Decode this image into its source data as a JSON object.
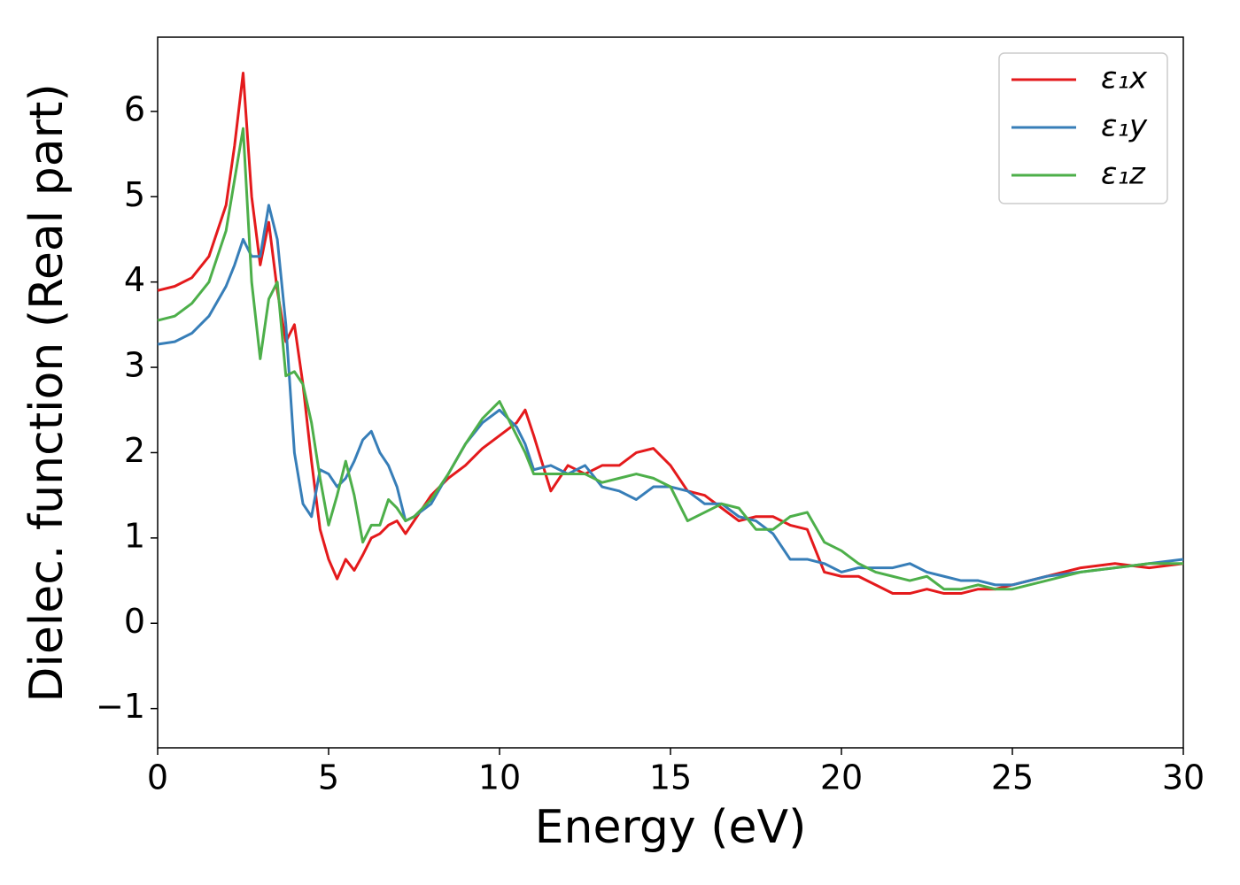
{
  "chart_data": {
    "type": "line",
    "xlabel": "Energy (eV)",
    "ylabel": "Dielec. function (Real part)",
    "x": [
      0,
      0.5,
      1,
      1.5,
      2,
      2.25,
      2.5,
      2.75,
      3,
      3.25,
      3.5,
      3.75,
      4,
      4.25,
      4.5,
      4.75,
      5,
      5.25,
      5.5,
      5.75,
      6,
      6.25,
      6.5,
      6.75,
      7,
      7.25,
      7.5,
      8,
      8.5,
      9,
      9.5,
      10,
      10.5,
      10.75,
      11,
      11.5,
      12,
      12.5,
      13,
      13.5,
      14,
      14.5,
      15,
      15.5,
      16,
      16.5,
      17,
      17.5,
      18,
      18.5,
      19,
      19.5,
      20,
      20.5,
      21,
      21.5,
      22,
      22.5,
      23,
      23.5,
      24,
      24.5,
      25,
      26,
      27,
      28,
      29,
      30
    ],
    "series": [
      {
        "name": "ε₁x",
        "color": "#e41a1c",
        "values": [
          3.9,
          3.95,
          4.05,
          4.3,
          4.9,
          5.6,
          6.45,
          5.0,
          4.2,
          4.7,
          3.9,
          3.3,
          3.5,
          2.8,
          1.9,
          1.1,
          0.75,
          0.52,
          0.75,
          0.62,
          0.8,
          1.0,
          1.05,
          1.15,
          1.2,
          1.05,
          1.2,
          1.5,
          1.7,
          1.85,
          2.05,
          2.2,
          2.35,
          2.5,
          2.2,
          1.55,
          1.85,
          1.75,
          1.85,
          1.85,
          2.0,
          2.05,
          1.85,
          1.55,
          1.5,
          1.35,
          1.2,
          1.25,
          1.25,
          1.15,
          1.1,
          0.6,
          0.55,
          0.55,
          0.45,
          0.35,
          0.35,
          0.4,
          0.35,
          0.35,
          0.4,
          0.4,
          0.45,
          0.55,
          0.65,
          0.7,
          0.65,
          0.7
        ]
      },
      {
        "name": "ε₁y",
        "color": "#377eb8",
        "values": [
          3.27,
          3.3,
          3.4,
          3.6,
          3.95,
          4.2,
          4.5,
          4.3,
          4.3,
          4.9,
          4.5,
          3.5,
          2.0,
          1.4,
          1.25,
          1.8,
          1.75,
          1.6,
          1.7,
          1.9,
          2.15,
          2.25,
          2.0,
          1.85,
          1.6,
          1.2,
          1.25,
          1.4,
          1.75,
          2.1,
          2.35,
          2.5,
          2.3,
          2.1,
          1.8,
          1.85,
          1.75,
          1.85,
          1.6,
          1.55,
          1.45,
          1.6,
          1.6,
          1.55,
          1.4,
          1.4,
          1.25,
          1.2,
          1.05,
          0.75,
          0.75,
          0.7,
          0.6,
          0.65,
          0.65,
          0.65,
          0.7,
          0.6,
          0.55,
          0.5,
          0.5,
          0.45,
          0.45,
          0.55,
          0.6,
          0.65,
          0.7,
          0.75
        ]
      },
      {
        "name": "ε₁z",
        "color": "#4daf4a",
        "values": [
          3.55,
          3.6,
          3.75,
          4.0,
          4.6,
          5.2,
          5.8,
          4.0,
          3.1,
          3.8,
          4.0,
          2.9,
          2.95,
          2.8,
          2.35,
          1.7,
          1.15,
          1.5,
          1.9,
          1.5,
          0.95,
          1.15,
          1.15,
          1.45,
          1.35,
          1.2,
          1.25,
          1.45,
          1.75,
          2.1,
          2.4,
          2.6,
          2.2,
          2.0,
          1.75,
          1.75,
          1.75,
          1.75,
          1.65,
          1.7,
          1.75,
          1.7,
          1.6,
          1.2,
          1.3,
          1.4,
          1.35,
          1.1,
          1.1,
          1.25,
          1.3,
          0.95,
          0.85,
          0.7,
          0.6,
          0.55,
          0.5,
          0.55,
          0.4,
          0.4,
          0.45,
          0.4,
          0.4,
          0.5,
          0.6,
          0.65,
          0.7,
          0.7
        ]
      }
    ],
    "xlim": [
      0,
      30
    ],
    "ylim": [
      -1.46,
      6.87
    ],
    "xticks": [
      0,
      5,
      10,
      15,
      20,
      25,
      30
    ],
    "yticks": [
      {
        "value": -1,
        "label": "−1"
      },
      0,
      1,
      2,
      3,
      4,
      5,
      6
    ],
    "legend": "upper right"
  }
}
